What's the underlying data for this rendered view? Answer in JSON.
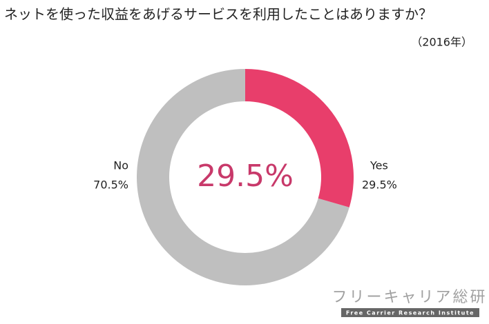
{
  "chart_data": {
    "type": "donut",
    "title": "ネットを使った収益をあげるサービスを利用したことはありますか？",
    "subtitle": "（2016年）",
    "categories": [
      "Yes",
      "No"
    ],
    "values": [
      29.5,
      70.5
    ],
    "value_labels": [
      "29.5%",
      "70.5%"
    ],
    "colors": [
      "#e83e6b",
      "#bfbfbf"
    ],
    "center_label": "29.5%"
  },
  "watermark": {
    "name": "フリーキャリア総研",
    "tagline": "Free Carrier Research Institute"
  }
}
